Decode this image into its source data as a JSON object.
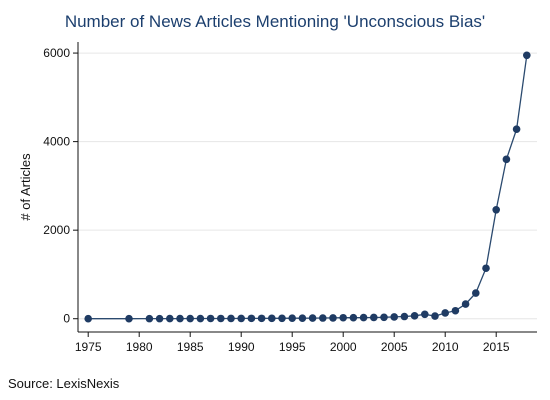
{
  "chart_data": {
    "type": "line",
    "title": "Number of News Articles Mentioning 'Unconscious Bias'",
    "xlabel": "",
    "ylabel": "# of Articles",
    "source": "Source: LexisNexis",
    "xlim": [
      1975,
      2018
    ],
    "ylim": [
      0,
      6000
    ],
    "xticks": [
      1975,
      1980,
      1985,
      1990,
      1995,
      2000,
      2005,
      2010,
      2015
    ],
    "yticks": [
      0,
      2000,
      4000,
      6000
    ],
    "grid": "horizontal",
    "legend": "none",
    "colors": {
      "line": "#2b4a6f",
      "marker": "#1f3b63",
      "grid": "#e6e6e6",
      "title": "#1c3f6e"
    },
    "series": [
      {
        "x": [
          1975,
          1979,
          1981,
          1982,
          1983,
          1984,
          1985,
          1986,
          1987,
          1988,
          1989,
          1990,
          1991,
          1992,
          1993,
          1994,
          1995,
          1996,
          1997,
          1998,
          1999,
          2000,
          2001,
          2002,
          2003,
          2004,
          2005,
          2006,
          2007,
          2008,
          2009,
          2010,
          2011,
          2012,
          2013,
          2014,
          2015,
          2016,
          2017,
          2018
        ],
        "y": [
          0,
          0,
          2,
          2,
          3,
          3,
          4,
          4,
          5,
          5,
          6,
          7,
          8,
          8,
          9,
          10,
          12,
          12,
          14,
          16,
          18,
          22,
          24,
          26,
          28,
          32,
          40,
          50,
          65,
          100,
          60,
          130,
          180,
          330,
          580,
          1140,
          2460,
          3600,
          4280,
          5950
        ]
      }
    ]
  }
}
